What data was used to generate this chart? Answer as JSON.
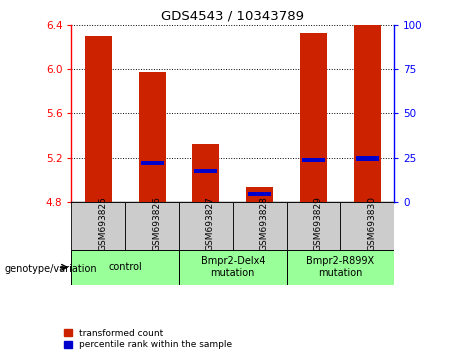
{
  "title": "GDS4543 / 10343789",
  "samples": [
    "GSM693825",
    "GSM693826",
    "GSM693827",
    "GSM693828",
    "GSM693829",
    "GSM693830"
  ],
  "red_values": [
    6.3,
    5.97,
    5.32,
    4.93,
    6.33,
    6.4
  ],
  "blue_values": [
    4.8,
    5.15,
    5.08,
    4.87,
    5.18,
    5.19
  ],
  "blue_show": [
    false,
    true,
    true,
    true,
    true,
    true
  ],
  "base": 4.8,
  "ylim": [
    4.8,
    6.4
  ],
  "yticks_left": [
    4.8,
    5.2,
    5.6,
    6.0,
    6.4
  ],
  "yticks_right": [
    0,
    25,
    50,
    75,
    100
  ],
  "right_ylim": [
    0,
    100
  ],
  "groups": [
    {
      "label": "control",
      "start": 0,
      "end": 2,
      "color": "#99ff99"
    },
    {
      "label": "Bmpr2-Delx4\nmutation",
      "start": 2,
      "end": 4,
      "color": "#99ff99"
    },
    {
      "label": "Bmpr2-R899X\nmutation",
      "start": 4,
      "end": 6,
      "color": "#99ff99"
    }
  ],
  "bar_width": 0.5,
  "bar_color": "#cc2200",
  "blue_color": "#0000cc",
  "grid_color": "#000000",
  "bg_color": "#ffffff",
  "sample_bg_color": "#cccccc",
  "label_red": "transformed count",
  "label_blue": "percentile rank within the sample",
  "xlabel": "genotype/variation"
}
